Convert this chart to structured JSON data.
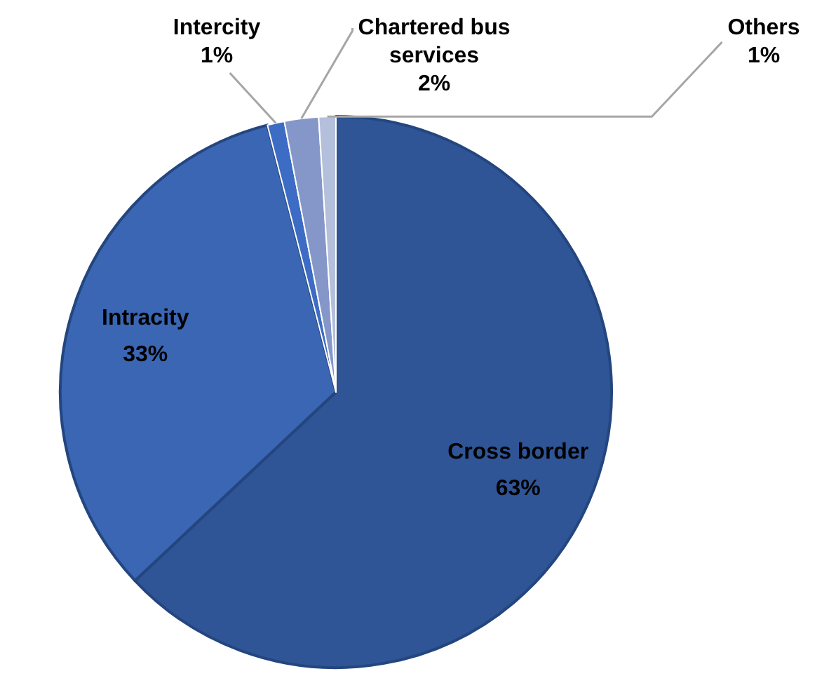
{
  "chart_data": {
    "type": "pie",
    "categories": [
      "Cross border",
      "Intracity",
      "Intercity",
      "Chartered bus services",
      "Others"
    ],
    "values": [
      63,
      33,
      1,
      2,
      1
    ],
    "value_labels": [
      "63%",
      "33%",
      "1%",
      "2%",
      "1%"
    ],
    "colors": [
      "#2f5597",
      "#3a66b4",
      "#3d6cc4",
      "#8597c9",
      "#b4bfdc"
    ],
    "legend": false
  }
}
